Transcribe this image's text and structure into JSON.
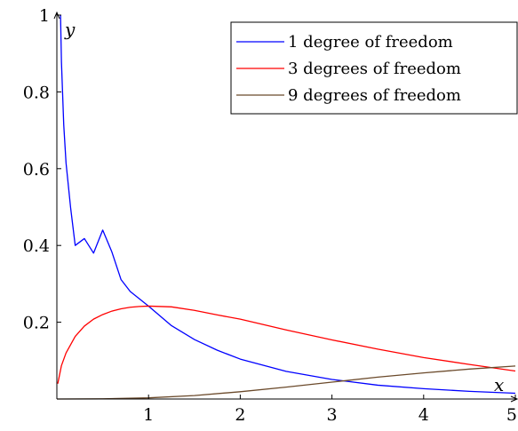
{
  "chart_data": {
    "type": "line",
    "title": "",
    "xlabel": "x",
    "ylabel": "y",
    "xlim": [
      0,
      5
    ],
    "ylim": [
      0,
      1
    ],
    "x_ticks": [
      1,
      2,
      3,
      4,
      5
    ],
    "x_tick_labels": [
      "1",
      "2",
      "3",
      "4",
      "5"
    ],
    "y_ticks": [
      0.2,
      0.4,
      0.6,
      0.8,
      1
    ],
    "y_tick_labels": [
      "0.2",
      "0.4",
      "0.6",
      "0.8",
      "1"
    ],
    "grid": false,
    "legend_position": "top-right",
    "series": [
      {
        "name": "1 degree of freedom",
        "color": "#0000ff",
        "points": [
          [
            0.04,
            1.0
          ],
          [
            0.05,
            0.878
          ],
          [
            0.075,
            0.714
          ],
          [
            0.1,
            0.615
          ],
          [
            0.15,
            0.498
          ],
          [
            0.2,
            0.4
          ],
          [
            0.3,
            0.418
          ],
          [
            0.4,
            0.38
          ],
          [
            0.5,
            0.44
          ],
          [
            0.6,
            0.383
          ],
          [
            0.7,
            0.311
          ],
          [
            0.8,
            0.28
          ],
          [
            1.0,
            0.242
          ],
          [
            1.25,
            0.191
          ],
          [
            1.5,
            0.155
          ],
          [
            1.75,
            0.127
          ],
          [
            2.0,
            0.104
          ],
          [
            2.5,
            0.072
          ],
          [
            3.0,
            0.051
          ],
          [
            3.5,
            0.036
          ],
          [
            4.0,
            0.027
          ],
          [
            4.5,
            0.02
          ],
          [
            5.0,
            0.015
          ]
        ]
      },
      {
        "name": "3 degrees of freedom",
        "color": "#ff0000",
        "points": [
          [
            0.01,
            0.04
          ],
          [
            0.05,
            0.087
          ],
          [
            0.1,
            0.12
          ],
          [
            0.2,
            0.163
          ],
          [
            0.3,
            0.19
          ],
          [
            0.4,
            0.208
          ],
          [
            0.5,
            0.22
          ],
          [
            0.6,
            0.229
          ],
          [
            0.7,
            0.235
          ],
          [
            0.8,
            0.239
          ],
          [
            0.9,
            0.241
          ],
          [
            1.0,
            0.242
          ],
          [
            1.25,
            0.24
          ],
          [
            1.5,
            0.231
          ],
          [
            1.75,
            0.219
          ],
          [
            2.0,
            0.208
          ],
          [
            2.5,
            0.18
          ],
          [
            3.0,
            0.154
          ],
          [
            3.5,
            0.13
          ],
          [
            4.0,
            0.108
          ],
          [
            4.5,
            0.09
          ],
          [
            5.0,
            0.073
          ]
        ]
      },
      {
        "name": "9 degrees of freedom",
        "color": "#6b4a2b",
        "points": [
          [
            0.0,
            0.0
          ],
          [
            0.5,
            0.0004
          ],
          [
            1.0,
            0.003
          ],
          [
            1.5,
            0.009
          ],
          [
            2.0,
            0.019
          ],
          [
            2.5,
            0.031
          ],
          [
            3.0,
            0.044
          ],
          [
            3.5,
            0.057
          ],
          [
            4.0,
            0.068
          ],
          [
            4.5,
            0.078
          ],
          [
            5.0,
            0.086
          ]
        ]
      }
    ]
  }
}
